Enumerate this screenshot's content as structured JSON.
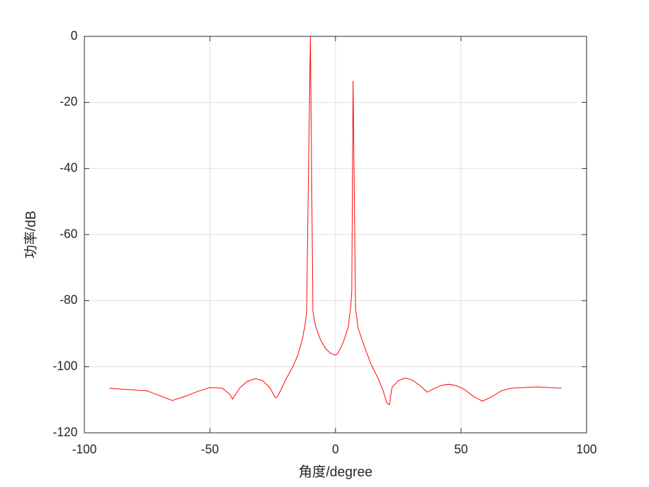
{
  "chart_data": {
    "type": "line",
    "xlabel": "角度/degree",
    "ylabel": "功率/dB",
    "xlim": [
      -100,
      100
    ],
    "ylim": [
      -120,
      0
    ],
    "xticks": [
      -100,
      -50,
      0,
      50,
      100
    ],
    "yticks": [
      -120,
      -100,
      -80,
      -60,
      -40,
      -20,
      0
    ],
    "grid": true,
    "x": [
      -90,
      -75,
      -65,
      -60,
      -55,
      -50,
      -45,
      -42,
      -41,
      -38,
      -35,
      -32,
      -29,
      -26,
      -24,
      -23,
      -20,
      -17,
      -15,
      -13,
      -12,
      -11.5,
      -10,
      -9,
      -8,
      -6,
      -4,
      -2,
      0,
      1,
      3,
      5,
      6,
      6.5,
      7,
      8,
      9,
      11,
      14,
      17,
      19,
      20.5,
      21.5,
      22.5,
      25,
      28,
      31,
      34,
      36.5,
      39,
      42,
      45,
      48,
      51,
      55,
      58.5,
      62,
      66,
      70,
      80,
      90
    ],
    "series": [
      {
        "color": "#ff0000",
        "values": [
          -106.5,
          -107.3,
          -110.2,
          -109,
          -107.5,
          -106.3,
          -106.5,
          -108.4,
          -109.8,
          -106.3,
          -104.4,
          -103.6,
          -104.2,
          -106.5,
          -109.4,
          -109,
          -104.2,
          -100,
          -96.5,
          -91.1,
          -86.6,
          -83.5,
          0,
          -83,
          -87.6,
          -91.8,
          -94.5,
          -95.9,
          -96.5,
          -95.9,
          -92.8,
          -88.2,
          -82.4,
          -77.2,
          -13.5,
          -82.4,
          -88.2,
          -92.8,
          -99,
          -103.6,
          -107.3,
          -111,
          -111.5,
          -106.3,
          -104.2,
          -103.4,
          -104.2,
          -105.9,
          -107.7,
          -106.7,
          -105.7,
          -105.3,
          -105.7,
          -106.7,
          -109,
          -110.4,
          -109.2,
          -107.3,
          -106.5,
          -106.1,
          -106.5
        ]
      }
    ]
  }
}
